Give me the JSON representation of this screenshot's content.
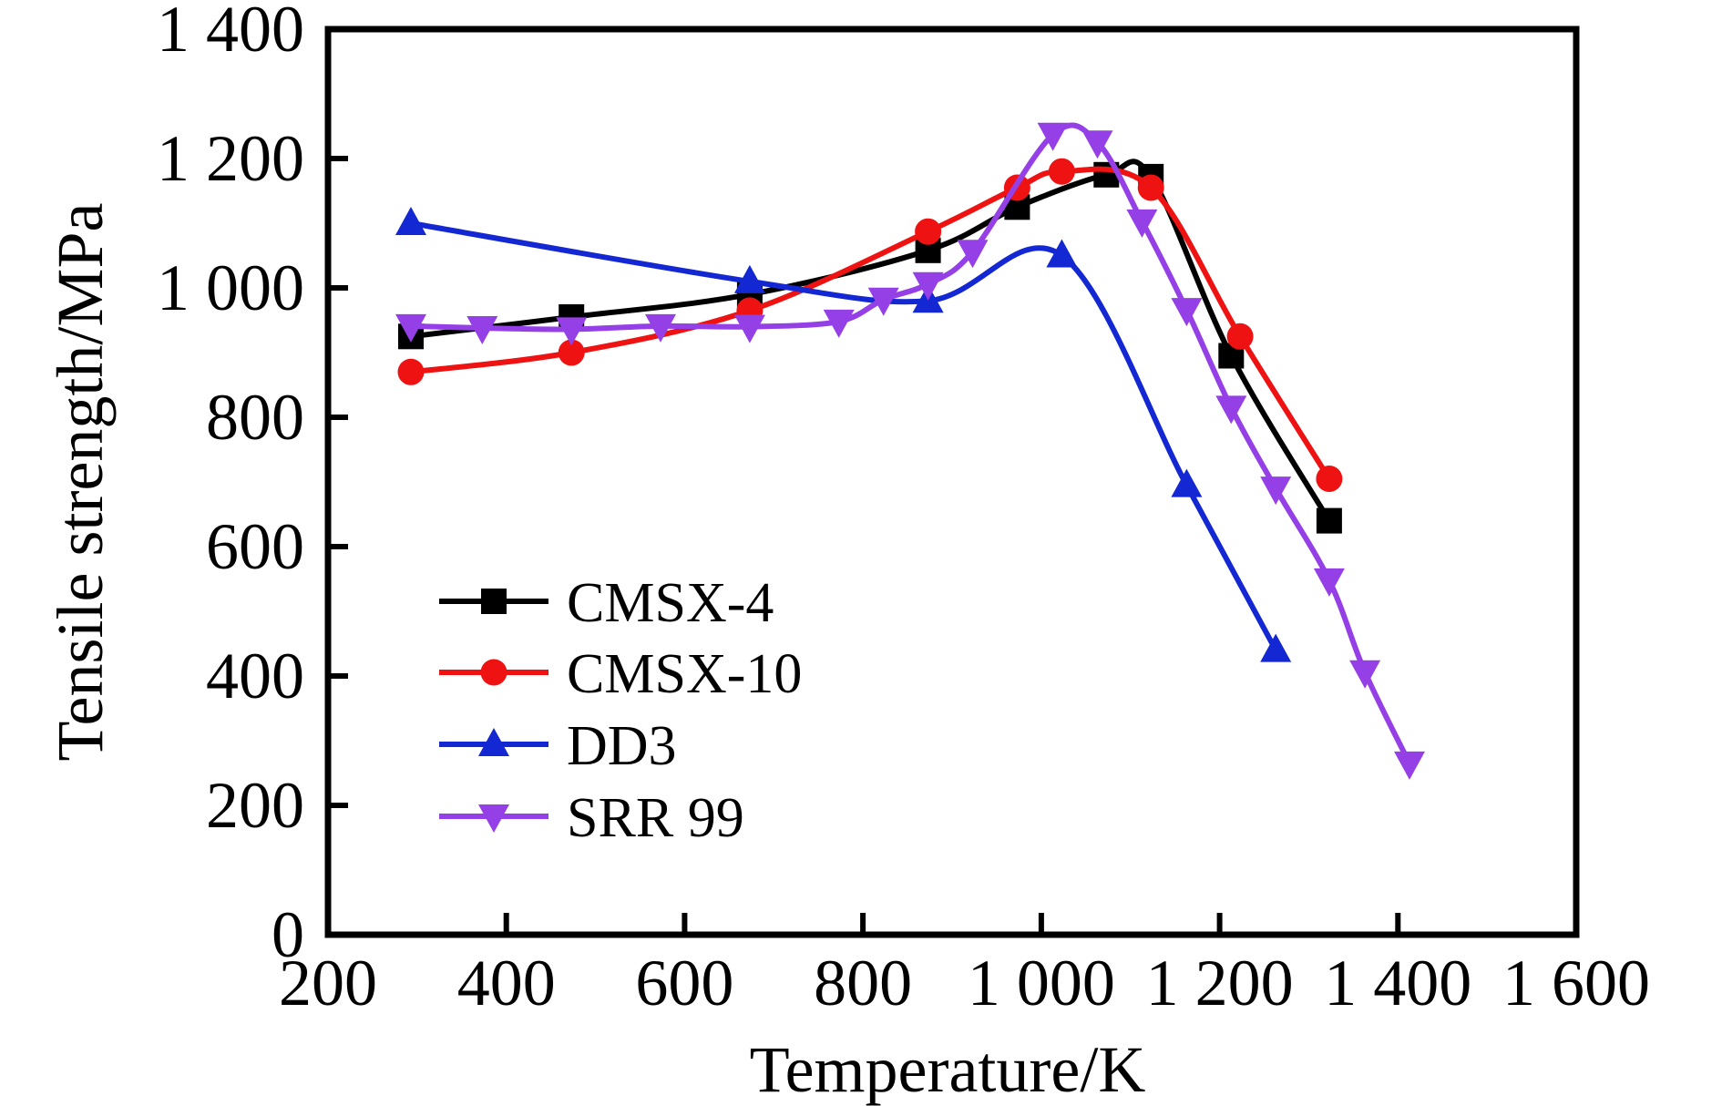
{
  "chart_data": {
    "type": "line",
    "title": "",
    "xlabel": "Temperature/K",
    "ylabel": "Tensile strength/MPa",
    "xlim": [
      200,
      1600
    ],
    "ylim": [
      0,
      1400
    ],
    "grid": false,
    "axis_color": "#000000",
    "x_ticks": {
      "values": [
        200,
        400,
        600,
        800,
        1000,
        1200,
        1400,
        1600
      ],
      "labels": [
        "200",
        "400",
        "600",
        "800",
        "1 000",
        "1 200",
        "1 400",
        "1 600"
      ]
    },
    "y_ticks": {
      "values": [
        0,
        200,
        400,
        600,
        800,
        1000,
        1200,
        1400
      ],
      "labels": [
        "0",
        "200",
        "400",
        "600",
        "800",
        "1 000",
        "1 200",
        "1 400"
      ]
    },
    "legend": {
      "position": "inside-lower-left",
      "entries": [
        "CMSX-4",
        "CMSX-10",
        "DD3",
        "SRR 99"
      ]
    },
    "series": [
      {
        "name": "CMSX-4",
        "color": "#000000",
        "marker": "square",
        "points": [
          [
            293,
            925
          ],
          [
            473,
            955
          ],
          [
            673,
            990
          ],
          [
            873,
            1058
          ],
          [
            973,
            1125
          ],
          [
            1073,
            1175
          ],
          [
            1123,
            1172
          ],
          [
            1213,
            895
          ],
          [
            1323,
            640
          ]
        ]
      },
      {
        "name": "CMSX-10",
        "color": "#ee1212",
        "marker": "circle",
        "points": [
          [
            293,
            870
          ],
          [
            473,
            900
          ],
          [
            673,
            965
          ],
          [
            873,
            1087
          ],
          [
            973,
            1155
          ],
          [
            1023,
            1180
          ],
          [
            1123,
            1155
          ],
          [
            1223,
            925
          ],
          [
            1323,
            705
          ]
        ]
      },
      {
        "name": "DD3",
        "color": "#1328d2",
        "marker": "triangle-up",
        "points": [
          [
            293,
            1100
          ],
          [
            673,
            1010
          ],
          [
            873,
            980
          ],
          [
            1023,
            1050
          ],
          [
            1163,
            695
          ],
          [
            1263,
            440
          ]
        ]
      },
      {
        "name": "SRR 99",
        "color": "#9540e6",
        "marker": "triangle-down",
        "points": [
          [
            293,
            941
          ],
          [
            373,
            938
          ],
          [
            473,
            936
          ],
          [
            573,
            941
          ],
          [
            673,
            940
          ],
          [
            773,
            948
          ],
          [
            823,
            982
          ],
          [
            873,
            1006
          ],
          [
            923,
            1056
          ],
          [
            1013,
            1237
          ],
          [
            1063,
            1225
          ],
          [
            1113,
            1103
          ],
          [
            1163,
            966
          ],
          [
            1213,
            815
          ],
          [
            1263,
            690
          ],
          [
            1323,
            548
          ],
          [
            1363,
            406
          ],
          [
            1413,
            265
          ]
        ]
      }
    ]
  }
}
